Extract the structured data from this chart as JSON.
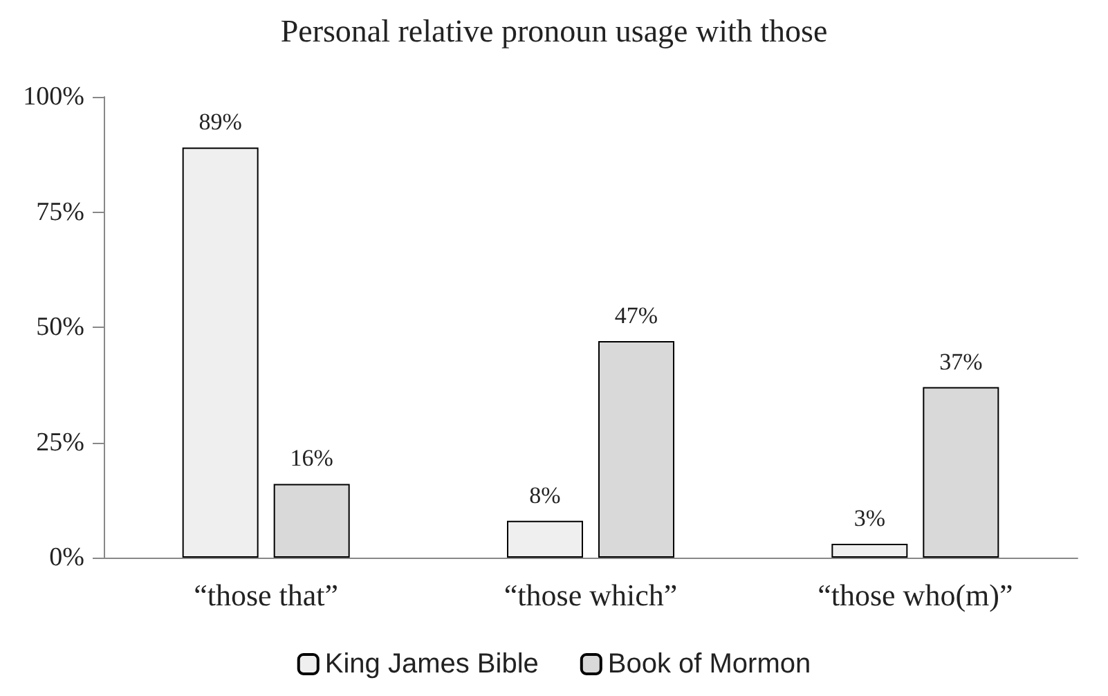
{
  "chart_data": {
    "type": "bar",
    "title": "Personal relative pronoun usage with those",
    "categories": [
      "“those that”",
      "“those which”",
      "“those who(m)”"
    ],
    "series": [
      {
        "name": "King James Bible",
        "color": "#efefef",
        "values": [
          89,
          8,
          3
        ],
        "value_labels": [
          "89%",
          "8%",
          "3%"
        ]
      },
      {
        "name": "Book of Mormon",
        "color": "#d9d9d9",
        "values": [
          16,
          47,
          37
        ],
        "value_labels": [
          "16%",
          "47%",
          "37%"
        ]
      }
    ],
    "ylim": [
      0,
      100
    ],
    "yticks": [
      {
        "value": 0,
        "label": "0%"
      },
      {
        "value": 25,
        "label": "25%"
      },
      {
        "value": 50,
        "label": "50%"
      },
      {
        "value": 75,
        "label": "75%"
      },
      {
        "value": 100,
        "label": "100%"
      }
    ],
    "grid": false,
    "legend": "bottom"
  }
}
